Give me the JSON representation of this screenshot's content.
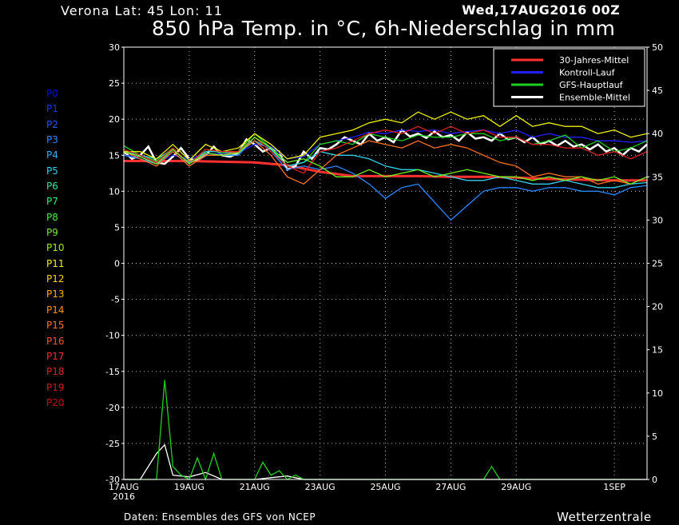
{
  "header": {
    "location": "Verona   Lat: 45 Lon: 11",
    "run": "Wed,17AUG2016 00Z",
    "title": "850 hPa Temp. in °C, 6h-Niederschlag in mm"
  },
  "footer": {
    "source": "Daten: Ensembles des GFS von NCEP",
    "brand": "Wetterzentrale"
  },
  "members": [
    "P0",
    "P1",
    "P2",
    "P3",
    "P4",
    "P5",
    "P6",
    "P7",
    "P8",
    "P9",
    "P10",
    "P11",
    "P12",
    "P13",
    "P14",
    "P15",
    "P16",
    "P17",
    "P18",
    "P19",
    "P20"
  ],
  "member_colors": [
    "#0000ff",
    "#1530ff",
    "#1e5aff",
    "#2a88ff",
    "#30b0ff",
    "#32d0e8",
    "#2ee8a0",
    "#30f070",
    "#40f040",
    "#70f020",
    "#a0f000",
    "#f0f000",
    "#ffd000",
    "#ffb000",
    "#ff9000",
    "#ff7020",
    "#ff5020",
    "#f03030",
    "#e02020",
    "#d01818",
    "#c01010"
  ],
  "chart_data": {
    "type": "line",
    "x_ticks": [
      {
        "pos": 0,
        "label": "17AUG",
        "sub": "2016"
      },
      {
        "pos": 2,
        "label": "19AUG"
      },
      {
        "pos": 4,
        "label": "21AUG"
      },
      {
        "pos": 6,
        "label": "23AUG"
      },
      {
        "pos": 8,
        "label": "25AUG"
      },
      {
        "pos": 10,
        "label": "27AUG"
      },
      {
        "pos": 12,
        "label": "29AUG"
      },
      {
        "pos": 15,
        "label": "1SEP"
      }
    ],
    "x_range": [
      0,
      16
    ],
    "y_left": {
      "min": -30,
      "max": 30,
      "ticks": [
        -30,
        -25,
        -20,
        -15,
        -10,
        -5,
        0,
        5,
        10,
        15,
        20,
        25,
        30
      ]
    },
    "y_right": {
      "min": 0,
      "max": 50,
      "ticks": [
        0,
        5,
        10,
        15,
        20,
        25,
        30,
        35,
        40,
        45,
        50
      ]
    },
    "grid": true,
    "legend": {
      "position": "top-right",
      "items": [
        {
          "label": "30-Jahres-Mittel",
          "color": "#ff3030"
        },
        {
          "label": "Kontroll-Lauf",
          "color": "#2020ff"
        },
        {
          "label": "GFS-Hauptlauf",
          "color": "#20d020"
        },
        {
          "label": "Ensemble-Mittel",
          "color": "#ffffff"
        }
      ]
    },
    "series": [
      {
        "name": "30-Jahres-Mittel",
        "axis": "left",
        "color": "#ff3030",
        "x": [
          0,
          1,
          2,
          3,
          4,
          5,
          6,
          7,
          8,
          9,
          10,
          11,
          12,
          13,
          14,
          15,
          16
        ],
        "y": [
          14.2,
          14.2,
          14.2,
          14.1,
          14.0,
          13.6,
          12.7,
          12.1,
          12.1,
          12.1,
          12.0,
          12.0,
          11.9,
          11.7,
          11.6,
          11.5,
          11.5
        ]
      },
      {
        "name": "Ensemble-Mittel",
        "axis": "left",
        "color": "#ffffff",
        "x": [
          0,
          0.25,
          0.5,
          0.75,
          1,
          1.25,
          1.5,
          1.75,
          2,
          2.25,
          2.5,
          2.75,
          3,
          3.25,
          3.5,
          3.75,
          4,
          4.25,
          4.5,
          4.75,
          5,
          5.25,
          5.5,
          5.75,
          6,
          6.25,
          6.5,
          6.75,
          7,
          7.25,
          7.5,
          7.75,
          8,
          8.25,
          8.5,
          8.75,
          9,
          9.25,
          9.5,
          9.75,
          10,
          10.25,
          10.5,
          10.75,
          11,
          11.25,
          11.5,
          11.75,
          12,
          12.25,
          12.5,
          12.75,
          13,
          13.25,
          13.5,
          13.75,
          14,
          14.25,
          14.5,
          14.75,
          15,
          15.25,
          15.5,
          15.75,
          16
        ],
        "y": [
          15.5,
          14.5,
          15,
          16.2,
          14,
          13.8,
          14.8,
          16,
          14.5,
          14.3,
          15,
          16.2,
          15,
          14.8,
          15.3,
          17.2,
          16.5,
          15.5,
          16,
          15.5,
          13,
          13.5,
          15.5,
          14.5,
          16,
          15.8,
          16.5,
          17.5,
          17,
          16.5,
          18,
          17,
          17.5,
          16.8,
          18.5,
          17.6,
          18,
          17.4,
          18.3,
          17.5,
          17.8,
          17,
          18.2,
          17.3,
          17.5,
          17,
          18,
          17.2,
          17.5,
          16.8,
          17.5,
          16.5,
          17,
          16.3,
          17,
          16.2,
          16.5,
          15.8,
          16.5,
          15.5,
          16,
          15,
          16,
          15.5,
          16.5
        ]
      },
      {
        "name": "Kontroll-Lauf",
        "axis": "left",
        "color": "#2020ff",
        "x": [
          0,
          0.5,
          1,
          1.5,
          2,
          2.5,
          3,
          3.5,
          4,
          4.5,
          5,
          5.5,
          6,
          6.5,
          7,
          7.5,
          8,
          8.5,
          9,
          9.5,
          10,
          10.5,
          11,
          11.5,
          12,
          12.5,
          13,
          13.5,
          14,
          14.5,
          15,
          15.5,
          16
        ],
        "y": [
          15,
          14.8,
          14,
          15,
          14.5,
          15.2,
          15.2,
          15.3,
          16.5,
          16.2,
          14.5,
          14.8,
          16.5,
          17,
          17.5,
          18.2,
          18,
          18.5,
          18.3,
          18.5,
          18,
          18.3,
          18.5,
          18,
          18.5,
          17.5,
          18,
          17.5,
          17.5,
          17,
          17,
          16.8,
          17
        ]
      },
      {
        "name": "GFS-Hauptlauf",
        "axis": "left",
        "color": "#20d020",
        "x": [
          0,
          0.5,
          1,
          1.5,
          2,
          2.5,
          3,
          3.5,
          4,
          4.5,
          5,
          5.5,
          6,
          6.5,
          7,
          7.5,
          8,
          8.5,
          9,
          9.5,
          10,
          10.5,
          11,
          11.5,
          12,
          12.5,
          13,
          13.5,
          14,
          14.5,
          15,
          15.5,
          16
        ],
        "y": [
          16.3,
          15,
          14.2,
          16,
          13.8,
          15.8,
          15.3,
          15.5,
          18,
          16,
          13.5,
          14,
          16.5,
          17,
          16.5,
          18,
          17.5,
          17,
          17.8,
          17.5,
          17.5,
          18,
          18,
          17,
          17.5,
          16.5,
          17,
          17.8,
          16,
          17,
          15.5,
          16,
          17
        ]
      },
      {
        "name": "P3",
        "axis": "left",
        "color": "#2a88ff",
        "x": [
          0,
          0.5,
          1,
          1.5,
          2,
          2.5,
          3,
          3.5,
          4,
          4.5,
          5,
          5.5,
          6,
          6.5,
          7,
          7.5,
          8,
          8.5,
          9,
          9.5,
          10,
          10.5,
          11,
          11.5,
          12,
          12.5,
          13,
          13.5,
          14,
          14.5,
          15,
          15.5,
          16
        ],
        "y": [
          15,
          14.5,
          13.8,
          15.5,
          13.5,
          15,
          15,
          15,
          17.5,
          15.5,
          13,
          13.5,
          13,
          13.5,
          12.5,
          11,
          9,
          10.5,
          11,
          8.5,
          6,
          8,
          10,
          10.5,
          10.5,
          10,
          10.5,
          10.5,
          10,
          10,
          9.5,
          10.5,
          10.8
        ]
      },
      {
        "name": "P5",
        "axis": "left",
        "color": "#32d0e8",
        "x": [
          0,
          0.5,
          1,
          1.5,
          2,
          2.5,
          3,
          3.5,
          4,
          4.5,
          5,
          5.5,
          6,
          6.5,
          7,
          7.5,
          8,
          8.5,
          9,
          9.5,
          10,
          10.5,
          11,
          11.5,
          12,
          12.5,
          13,
          13.5,
          14,
          14.5,
          15,
          15.5,
          16
        ],
        "y": [
          15.5,
          15,
          14.5,
          15.8,
          14,
          15.5,
          15.5,
          15.3,
          17,
          15.8,
          13.5,
          14,
          15.5,
          15,
          15,
          14.5,
          13.5,
          13,
          13,
          12.5,
          12,
          11.5,
          11.5,
          12,
          11.5,
          11,
          11,
          11.5,
          11,
          10.5,
          10.5,
          11,
          11.2
        ]
      },
      {
        "name": "P11",
        "axis": "left",
        "color": "#f0f000",
        "x": [
          0,
          0.5,
          1,
          1.5,
          2,
          2.5,
          3,
          3.5,
          4,
          4.5,
          5,
          5.5,
          6,
          6.5,
          7,
          7.5,
          8,
          8.5,
          9,
          9.5,
          10,
          10.5,
          11,
          11.5,
          12,
          12.5,
          13,
          13.5,
          14,
          14.5,
          15,
          15.5,
          16
        ],
        "y": [
          15.5,
          15.5,
          14.5,
          16.5,
          14.3,
          16.5,
          15.5,
          16,
          18,
          16.5,
          14.5,
          15,
          17.5,
          18,
          18.5,
          19.5,
          20,
          19.5,
          21,
          20,
          21,
          20,
          20.5,
          19,
          20.5,
          19,
          19.5,
          19,
          19,
          18,
          18.5,
          17.5,
          18
        ]
      },
      {
        "name": "P15",
        "axis": "left",
        "color": "#ff7020",
        "x": [
          0,
          0.5,
          1,
          1.5,
          2,
          2.5,
          3,
          3.5,
          4,
          4.5,
          5,
          5.5,
          6,
          6.5,
          7,
          7.5,
          8,
          8.5,
          9,
          9.5,
          10,
          10.5,
          11,
          11.5,
          12,
          12.5,
          13,
          13.5,
          14,
          14.5,
          15,
          15.5,
          16
        ],
        "y": [
          15.5,
          14.5,
          13.5,
          15.5,
          13.5,
          15,
          15,
          15.5,
          17,
          15,
          12,
          11,
          13,
          15,
          16,
          17,
          16.5,
          16,
          17,
          16,
          16.5,
          16,
          15,
          14,
          13.5,
          12,
          12.5,
          12,
          12,
          11,
          11.5,
          11,
          12
        ]
      },
      {
        "name": "P18",
        "axis": "left",
        "color": "#e02020",
        "x": [
          0,
          0.5,
          1,
          1.5,
          2,
          2.5,
          3,
          3.5,
          4,
          4.5,
          5,
          5.5,
          6,
          6.5,
          7,
          7.5,
          8,
          8.5,
          9,
          9.5,
          10,
          10.5,
          11,
          11.5,
          12,
          12.5,
          13,
          13.5,
          14,
          14.5,
          15,
          15.5,
          16
        ],
        "y": [
          15.8,
          15,
          14,
          16,
          13.8,
          15.8,
          15.5,
          15.5,
          17.5,
          15.5,
          13.5,
          12.5,
          15.5,
          16,
          17,
          18,
          18.5,
          18,
          19,
          18,
          19,
          18,
          18.5,
          17.5,
          17.5,
          16.5,
          16.5,
          16,
          16,
          15,
          15.5,
          14.5,
          15.5
        ]
      },
      {
        "name": "P9",
        "axis": "left",
        "color": "#70f020",
        "x": [
          0,
          0.5,
          1,
          1.5,
          2,
          2.5,
          3,
          3.5,
          4,
          4.5,
          5,
          5.5,
          6,
          6.5,
          7,
          7.5,
          8,
          8.5,
          9,
          9.5,
          10,
          10.5,
          11,
          11.5,
          12,
          12.5,
          13,
          13.5,
          14,
          14.5,
          15,
          15.5,
          16
        ],
        "y": [
          15.5,
          14.8,
          13.8,
          15.8,
          13.8,
          15.3,
          15,
          15.3,
          17.5,
          16,
          14,
          14.5,
          13.5,
          12,
          12,
          13,
          12,
          12.5,
          13,
          12,
          12.5,
          13,
          12.5,
          12,
          12,
          11.5,
          12,
          11.5,
          12,
          11.5,
          12,
          11,
          12
        ]
      },
      {
        "name": "P0-precip",
        "axis": "right",
        "color": "#ffffff",
        "x": [
          0,
          0.5,
          1,
          1.25,
          1.5,
          2,
          2.5,
          3,
          4,
          4.5,
          5,
          5.5,
          6,
          7,
          8,
          9,
          10,
          11,
          12,
          13,
          14,
          15,
          16
        ],
        "y": [
          0,
          0,
          3,
          4,
          0.5,
          0.3,
          0.8,
          0,
          0,
          0.2,
          0.4,
          0,
          0,
          0,
          0,
          0,
          0,
          0,
          0,
          0,
          0,
          0,
          0
        ]
      },
      {
        "name": "GFS-precip",
        "axis": "right",
        "color": "#20d020",
        "x": [
          0,
          0.5,
          1,
          1.25,
          1.5,
          1.75,
          2,
          2.25,
          2.5,
          2.75,
          3,
          4,
          4.25,
          4.5,
          4.75,
          5,
          5.25,
          5.5,
          6,
          7,
          8,
          9,
          10,
          10.5,
          11,
          11.25,
          11.5,
          12,
          13,
          14,
          15,
          16
        ],
        "y": [
          0,
          0,
          0,
          11.5,
          1.5,
          0.5,
          0,
          2.5,
          0,
          3,
          0,
          0,
          2,
          0.5,
          1,
          0,
          0.5,
          0,
          0,
          0,
          0,
          0,
          0,
          0,
          0,
          1.5,
          0,
          0,
          0,
          0,
          0,
          0
        ]
      }
    ]
  }
}
